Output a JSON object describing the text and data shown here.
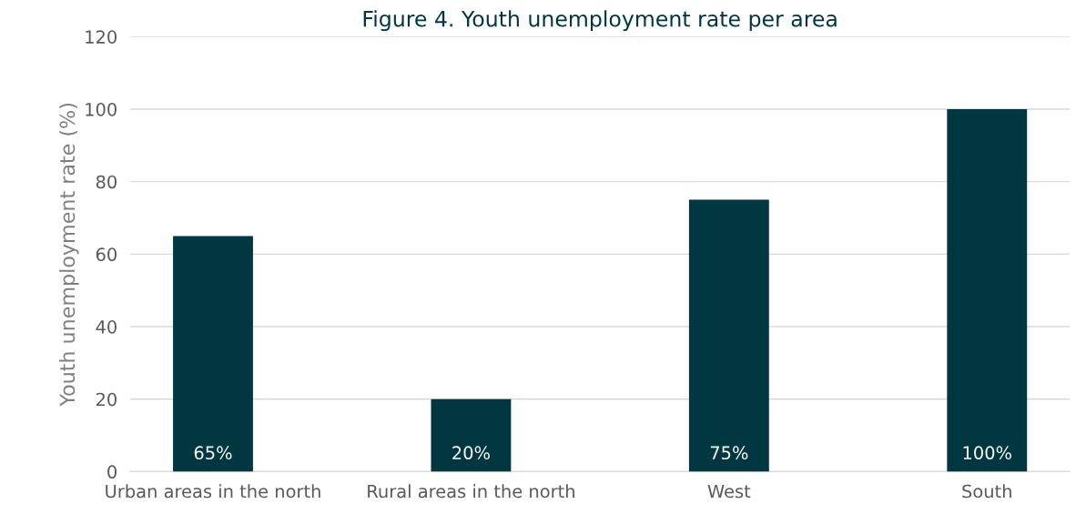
{
  "chart_data": {
    "type": "bar",
    "title": "Figure 4. Youth unemployment rate per area",
    "ylabel": "Youth unemployment rate (%)",
    "categories": [
      "Urban areas in the north",
      "Rural areas in the north",
      "West",
      "South"
    ],
    "values": [
      65,
      20,
      75,
      100
    ],
    "color": "#013741",
    "value_labels": [
      "65%",
      "20%",
      "75%",
      "100%"
    ],
    "ylim": [
      0,
      120
    ],
    "yticks": [
      0,
      20,
      40,
      60,
      80,
      100,
      120
    ],
    "grid": "y"
  }
}
